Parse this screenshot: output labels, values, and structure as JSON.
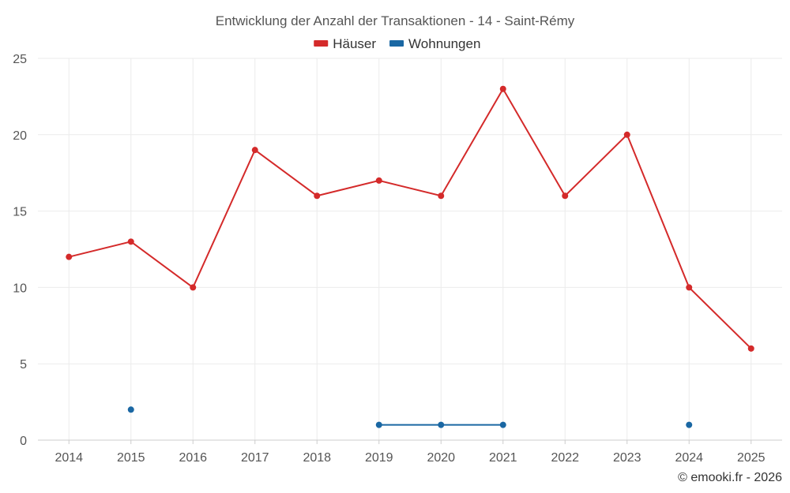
{
  "chart_data": {
    "type": "line",
    "title": "Entwicklung der Anzahl der Transaktionen - 14 - Saint-Rémy",
    "categories": [
      "2014",
      "2015",
      "2016",
      "2017",
      "2018",
      "2019",
      "2020",
      "2021",
      "2022",
      "2023",
      "2024",
      "2025"
    ],
    "series": [
      {
        "name": "Häuser",
        "color": "#d42a2a",
        "values": [
          12,
          13,
          10,
          19,
          16,
          17,
          16,
          23,
          16,
          20,
          10,
          6
        ]
      },
      {
        "name": "Wohnungen",
        "color": "#1a67a3",
        "values": [
          null,
          2,
          null,
          null,
          null,
          1,
          1,
          1,
          null,
          null,
          1,
          null
        ]
      }
    ],
    "ylim": [
      0,
      25
    ],
    "yticks": [
      0,
      5,
      10,
      15,
      20,
      25
    ],
    "grid": true,
    "legend": "top-center"
  },
  "credit": "© emooki.fr - 2026"
}
